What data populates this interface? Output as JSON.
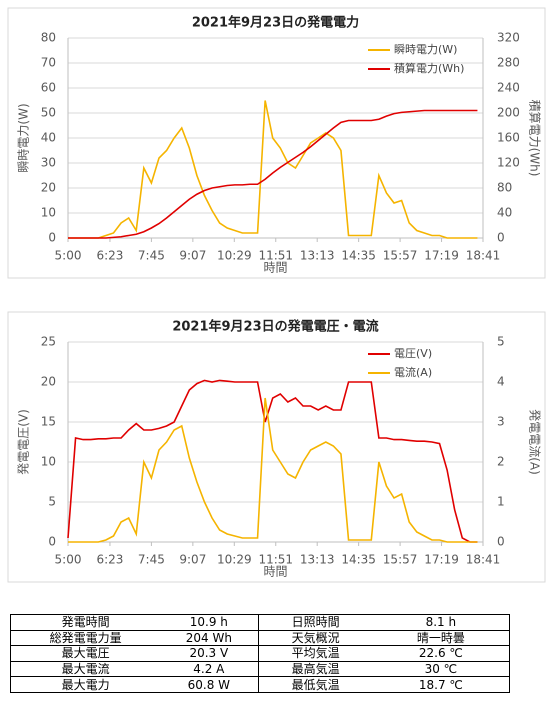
{
  "chart_data": [
    {
      "type": "line",
      "title": "2021年9月23日の発電電力",
      "xlabel": "時間",
      "ylabel": "瞬時電力(W)",
      "y2label": "積算電力(Wh)",
      "x": [
        300,
        315,
        330,
        345,
        360,
        375,
        390,
        405,
        420,
        435,
        450,
        465,
        480,
        495,
        510,
        525,
        540,
        555,
        570,
        585,
        600,
        615,
        630,
        645,
        660,
        675,
        690,
        705,
        720,
        735,
        750,
        765,
        780,
        795,
        810,
        825,
        840,
        855,
        870,
        885,
        900,
        915,
        930,
        945,
        960,
        975,
        990,
        1005,
        1020,
        1035,
        1050,
        1065,
        1080,
        1095,
        1110
      ],
      "xlim": [
        300,
        1121
      ],
      "xticks": [
        {
          "value": 300,
          "label": "5:00"
        },
        {
          "value": 383,
          "label": "6:23"
        },
        {
          "value": 465,
          "label": "7:45"
        },
        {
          "value": 547,
          "label": "9:07"
        },
        {
          "value": 629,
          "label": "10:29"
        },
        {
          "value": 711,
          "label": "11:51"
        },
        {
          "value": 793,
          "label": "13:13"
        },
        {
          "value": 875,
          "label": "14:35"
        },
        {
          "value": 957,
          "label": "15:57"
        },
        {
          "value": 1039,
          "label": "17:19"
        },
        {
          "value": 1121,
          "label": "18:41"
        }
      ],
      "ylim": [
        0,
        80
      ],
      "yticks": [
        0,
        10,
        20,
        30,
        40,
        50,
        60,
        70,
        80
      ],
      "y2lim": [
        0,
        320
      ],
      "y2ticks": [
        0,
        40,
        80,
        120,
        160,
        200,
        240,
        280,
        320
      ],
      "grid": true,
      "legend": "upper right",
      "series": [
        {
          "name": "瞬時電力(W)",
          "color": "#f5b400",
          "values": [
            0,
            0,
            0,
            0,
            0,
            1,
            2,
            6,
            8,
            3,
            28,
            22,
            32,
            35,
            40,
            44,
            36,
            25,
            17,
            11,
            6,
            4,
            3,
            2,
            2,
            2,
            55,
            40,
            36,
            30,
            28,
            33,
            38,
            40,
            42,
            40,
            35,
            1,
            1,
            1,
            1,
            25,
            18,
            14,
            15,
            6,
            3,
            2,
            1,
            1,
            0,
            0,
            0,
            0,
            0
          ]
        },
        {
          "name": "積算電力(Wh)",
          "color": "#e00000",
          "axis": "y2",
          "values": [
            0,
            0,
            0,
            0,
            0,
            0,
            1,
            2,
            4,
            6,
            10,
            16,
            23,
            32,
            42,
            52,
            62,
            70,
            76,
            80,
            82,
            84,
            85,
            85,
            86,
            86,
            94,
            104,
            113,
            121,
            129,
            137,
            146,
            156,
            166,
            176,
            185,
            188,
            188,
            188,
            188,
            190,
            195,
            199,
            201,
            202,
            203,
            204,
            204,
            204,
            204,
            204,
            204,
            204,
            204
          ]
        }
      ]
    },
    {
      "type": "line",
      "title": "2021年9月23日の発電電圧・電流",
      "xlabel": "時間",
      "ylabel": "発電電圧(V)",
      "y2label": "発電電流(A)",
      "x": [
        300,
        315,
        330,
        345,
        360,
        375,
        390,
        405,
        420,
        435,
        450,
        465,
        480,
        495,
        510,
        525,
        540,
        555,
        570,
        585,
        600,
        615,
        630,
        645,
        660,
        675,
        690,
        705,
        720,
        735,
        750,
        765,
        780,
        795,
        810,
        825,
        840,
        855,
        870,
        885,
        900,
        915,
        930,
        945,
        960,
        975,
        990,
        1005,
        1020,
        1035,
        1050,
        1065,
        1080,
        1095,
        1110
      ],
      "xlim": [
        300,
        1121
      ],
      "xticks": [
        {
          "value": 300,
          "label": "5:00"
        },
        {
          "value": 383,
          "label": "6:23"
        },
        {
          "value": 465,
          "label": "7:45"
        },
        {
          "value": 547,
          "label": "9:07"
        },
        {
          "value": 629,
          "label": "10:29"
        },
        {
          "value": 711,
          "label": "11:51"
        },
        {
          "value": 793,
          "label": "13:13"
        },
        {
          "value": 875,
          "label": "14:35"
        },
        {
          "value": 957,
          "label": "15:57"
        },
        {
          "value": 1039,
          "label": "17:19"
        },
        {
          "value": 1121,
          "label": "18:41"
        }
      ],
      "ylim": [
        0,
        25
      ],
      "yticks": [
        0,
        5,
        10,
        15,
        20,
        25
      ],
      "y2lim": [
        0,
        5
      ],
      "y2ticks": [
        0,
        1,
        2,
        3,
        4,
        5
      ],
      "grid": true,
      "legend": "upper right",
      "series": [
        {
          "name": "電圧(V)",
          "color": "#e00000",
          "values": [
            0.5,
            13,
            12.8,
            12.8,
            12.9,
            12.9,
            13,
            13,
            14,
            14.8,
            14,
            14,
            14.2,
            14.5,
            15,
            17,
            19,
            19.8,
            20.2,
            20,
            20.2,
            20.1,
            20,
            20,
            20,
            20,
            15,
            18,
            18.5,
            17.5,
            18,
            17,
            17,
            16.5,
            17,
            16.5,
            16.5,
            20,
            20,
            20,
            20,
            13,
            13,
            12.8,
            12.8,
            12.7,
            12.6,
            12.6,
            12.5,
            12.3,
            9,
            4,
            0.5,
            0,
            0
          ]
        },
        {
          "name": "電流(A)",
          "color": "#f5b400",
          "axis": "y2",
          "values": [
            0,
            0,
            0,
            0,
            0,
            0.05,
            0.15,
            0.5,
            0.6,
            0.2,
            2,
            1.6,
            2.3,
            2.5,
            2.8,
            2.9,
            2.1,
            1.5,
            1,
            0.6,
            0.3,
            0.2,
            0.15,
            0.1,
            0.1,
            0.1,
            3.6,
            2.3,
            2,
            1.7,
            1.6,
            2,
            2.3,
            2.4,
            2.5,
            2.4,
            2.2,
            0.05,
            0.05,
            0.05,
            0.05,
            2,
            1.4,
            1.1,
            1.2,
            0.5,
            0.25,
            0.15,
            0.05,
            0.05,
            0,
            0,
            0,
            0,
            0
          ]
        }
      ]
    }
  ],
  "table": {
    "rows": [
      [
        "発電時間",
        "10.9 h",
        "日照時間",
        "8.1 h"
      ],
      [
        "総発電電力量",
        "204 Wh",
        "天気概況",
        "晴一時曇"
      ],
      [
        "最大電圧",
        "20.3 V",
        "平均気温",
        "22.6 ℃"
      ],
      [
        "最大電流",
        "4.2 A",
        "最高気温",
        "30 ℃"
      ],
      [
        "最大電力",
        "60.8 W",
        "最低気温",
        "18.7 ℃"
      ]
    ]
  }
}
